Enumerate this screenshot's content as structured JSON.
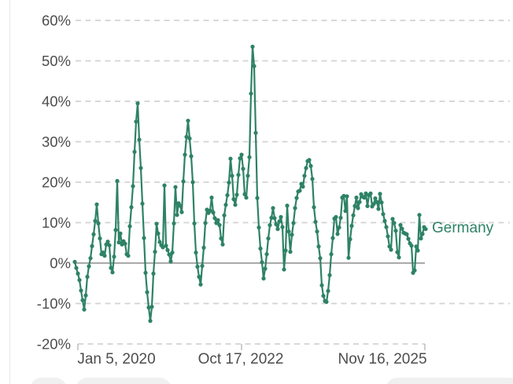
{
  "chart": {
    "legend_label": "Germany",
    "line_color": "#2e8266",
    "grid_color": "#d3d3d3",
    "zero_line_color": "#a9a9a9",
    "axis_text_color": "#4d4d4d"
  },
  "chart_data": {
    "type": "line",
    "title": "",
    "xlabel": "",
    "ylabel": "",
    "ylim": [
      -20,
      60
    ],
    "grid": "dashed-horizontal",
    "legend_position": "right-of-last-point",
    "y_ticks": [
      {
        "label": "60%",
        "value": 60
      },
      {
        "label": "50%",
        "value": 50
      },
      {
        "label": "40%",
        "value": 40
      },
      {
        "label": "30%",
        "value": 30
      },
      {
        "label": "20%",
        "value": 20
      },
      {
        "label": "10%",
        "value": 10
      },
      {
        "label": "0%",
        "value": 0
      },
      {
        "label": "-10%",
        "value": -10
      },
      {
        "label": "-20%",
        "value": -20
      }
    ],
    "x_ticks": [
      {
        "label": "Jan 5, 2020",
        "tick_x": 99,
        "label_cx": 148
      },
      {
        "label": "Oct 17, 2022",
        "tick_x": 307,
        "label_cx": 306
      },
      {
        "label": "Nov 16, 2025",
        "tick_x": 540,
        "label_cx": 486
      }
    ],
    "series": [
      {
        "name": "Germany",
        "color": "#2e8266",
        "start_date": "2019-12-17",
        "end_date": "2025-11-21",
        "point_interval_days": 9.7,
        "unit": "%",
        "values": [
          0.3,
          -1.2,
          -2.6,
          -4.2,
          -6.8,
          -9.2,
          -11.5,
          -8.0,
          -3.4,
          -0.8,
          1.2,
          4.2,
          7.1,
          10.4,
          14.5,
          9.8,
          6.1,
          2.2,
          2.6,
          1.8,
          4.6,
          5.3,
          4.4,
          -1.2,
          -2.3,
          1.6,
          8.2,
          20.3,
          5.1,
          7.3,
          4.6,
          5.4,
          4.8,
          2.2,
          1.8,
          9.1,
          13.8,
          19.0,
          27.5,
          35.0,
          39.5,
          30.5,
          23.5,
          14.7,
          6.2,
          -2.4,
          -7.2,
          -11.0,
          -14.3,
          -10.8,
          -2.6,
          2.8,
          9.7,
          7.3,
          5.2,
          4.4,
          3.9,
          19.2,
          4.3,
          3.2,
          2.1,
          0.4,
          2.6,
          9.8,
          18.8,
          11.9,
          14.8,
          14.2,
          12.6,
          20.2,
          26.8,
          31.2,
          35.2,
          30.8,
          26.4,
          20.0,
          9.8,
          2.6,
          -0.9,
          -3.4,
          -5.3,
          -0.7,
          3.8,
          9.9,
          13.2,
          12.4,
          13.0,
          16.2,
          12.5,
          11.1,
          9.9,
          10.6,
          9.4,
          6.1,
          4.6,
          11.8,
          14.4,
          16.8,
          19.9,
          25.8,
          21.6,
          15.8,
          14.4,
          16.9,
          21.8,
          25.9,
          26.8,
          23.3,
          17.0,
          16.2,
          21.6,
          26.2,
          41.9,
          53.5,
          48.7,
          32.2,
          16.1,
          8.8,
          3.6,
          0.2,
          -3.8,
          -1.4,
          2.2,
          6.1,
          9.4,
          11.2,
          13.6,
          11.1,
          9.6,
          8.4,
          10.3,
          11.4,
          8.9,
          -1.6,
          3.1,
          14.2,
          7.8,
          2.8,
          7.0,
          9.9,
          13.6,
          16.1,
          17.7,
          17.9,
          19.6,
          18.9,
          21.6,
          23.5,
          25.2,
          25.5,
          24.0,
          20.8,
          13.8,
          10.2,
          7.8,
          4.1,
          1.2,
          -5.5,
          -8.1,
          -9.4,
          -9.6,
          -6.9,
          -3.0,
          2.2,
          6.2,
          11.0,
          11.4,
          7.2,
          8.8,
          11.2,
          16.2,
          16.6,
          12.9,
          16.5,
          1.3,
          5.9,
          9.2,
          11.8,
          14.1,
          16.2,
          13.6,
          15.1,
          17.0,
          16.4,
          16.2,
          17.2,
          14.1,
          16.8,
          17.2,
          14.0,
          14.6,
          16.0,
          15.1,
          13.4,
          17.1,
          15.0,
          12.1,
          10.4,
          8.9,
          6.6,
          4.1,
          3.3,
          10.9,
          9.9,
          8.0,
          2.7,
          1.4,
          9.4,
          8.5,
          7.5,
          7.3,
          7.1,
          6.0,
          4.9,
          4.3,
          -2.4,
          -1.8,
          4.1,
          3.1,
          11.9,
          6.1,
          7.2,
          8.9,
          8.4
        ]
      }
    ]
  }
}
